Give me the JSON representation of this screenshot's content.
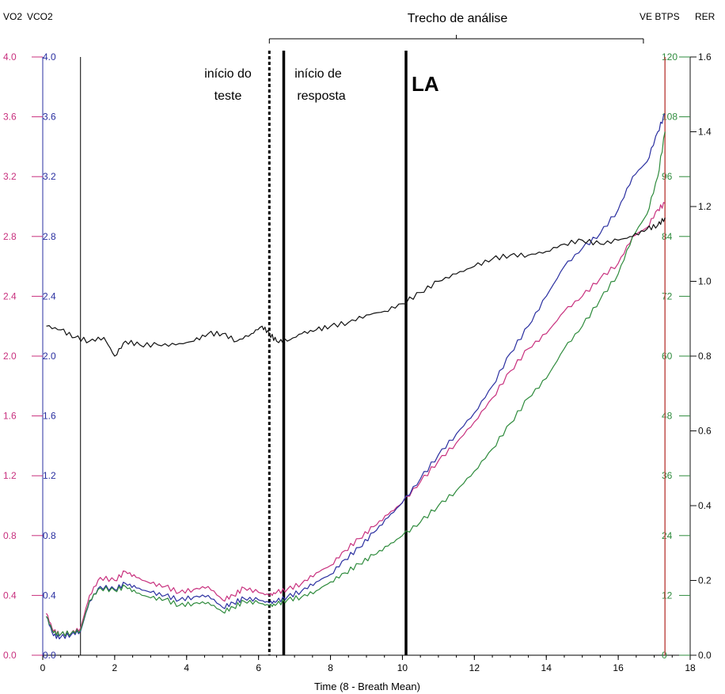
{
  "chart_data": {
    "type": "line",
    "xlabel": "Time (8 - Breath Mean)",
    "xlim": [
      0,
      18
    ],
    "x_ticks": [
      0,
      2,
      4,
      6,
      8,
      10,
      12,
      14,
      16,
      18
    ],
    "colors": {
      "VO2": "#c8307e",
      "VCO2": "#2a2fa0",
      "VE": "#2e8b3c",
      "RER": "#111111",
      "marker_red": "#c0504d"
    },
    "left_axes": [
      {
        "name": "VO2",
        "color": "#c8307e",
        "ylim": [
          0,
          4.0
        ],
        "ticks": [
          "0.0",
          "0.4",
          "0.8",
          "1.2",
          "1.6",
          "2.0",
          "2.4",
          "2.8",
          "3.2",
          "3.6",
          "4.0"
        ]
      },
      {
        "name": "VCO2",
        "color": "#2a2fa0",
        "ylim": [
          0,
          4.0
        ],
        "ticks": [
          "0.0",
          "0.4",
          "0.8",
          "1.2",
          "1.6",
          "2.0",
          "2.4",
          "2.8",
          "3.2",
          "3.6",
          "4.0"
        ]
      }
    ],
    "right_axes": [
      {
        "name": "VE BTPS",
        "color": "#2e8b3c",
        "ylim": [
          0,
          120
        ],
        "ticks": [
          "0",
          "12",
          "24",
          "36",
          "48",
          "60",
          "72",
          "84",
          "96",
          "108",
          "120"
        ]
      },
      {
        "name": "RER",
        "color": "#111111",
        "ylim": [
          0,
          1.6
        ],
        "ticks": [
          "0.0",
          "0.2",
          "0.4",
          "0.6",
          "0.8",
          "1.0",
          "1.2",
          "1.4",
          "1.6"
        ]
      }
    ],
    "header_labels": {
      "left1": "VO2",
      "left2": "VCO2",
      "right1": "VE BTPS",
      "right2": "RER"
    },
    "annotations": {
      "bracket_label": "Trecho de análise",
      "bracket_range": [
        6.3,
        16.7
      ],
      "inicio_teste": [
        "início  do",
        "teste"
      ],
      "inicio_resposta": [
        "início de",
        "resposta"
      ],
      "la": "LA"
    },
    "vertical_lines": [
      {
        "x": 1.05,
        "style": "thin"
      },
      {
        "x": 6.3,
        "style": "dotted"
      },
      {
        "x": 6.7,
        "style": "bold"
      },
      {
        "x": 10.1,
        "style": "bold"
      },
      {
        "x": 17.3,
        "style": "red"
      }
    ],
    "series": [
      {
        "name": "VO2",
        "axis": "VO2",
        "x": [
          0.1,
          0.3,
          0.5,
          0.8,
          1.05,
          1.3,
          1.6,
          2.0,
          2.3,
          2.6,
          3.0,
          3.4,
          3.8,
          4.2,
          4.6,
          5.0,
          5.3,
          5.6,
          6.0,
          6.3,
          6.5,
          6.8,
          7.2,
          7.6,
          8.0,
          8.4,
          8.8,
          9.2,
          9.6,
          10.0,
          10.5,
          11.0,
          11.5,
          12.0,
          12.5,
          13.0,
          13.5,
          14.0,
          14.5,
          15.0,
          15.5,
          16.0,
          16.4,
          16.8,
          17.1,
          17.3
        ],
        "values": [
          0.28,
          0.16,
          0.14,
          0.15,
          0.18,
          0.4,
          0.52,
          0.5,
          0.56,
          0.52,
          0.48,
          0.46,
          0.42,
          0.44,
          0.46,
          0.37,
          0.4,
          0.45,
          0.42,
          0.4,
          0.42,
          0.44,
          0.48,
          0.55,
          0.6,
          0.7,
          0.78,
          0.86,
          0.94,
          1.02,
          1.16,
          1.3,
          1.42,
          1.56,
          1.72,
          1.9,
          2.05,
          2.15,
          2.3,
          2.4,
          2.52,
          2.62,
          2.8,
          2.86,
          2.98,
          3.02
        ]
      },
      {
        "name": "VCO2",
        "axis": "VCO2",
        "x": [
          0.1,
          0.3,
          0.5,
          0.8,
          1.05,
          1.3,
          1.6,
          2.0,
          2.3,
          2.6,
          3.0,
          3.4,
          3.8,
          4.2,
          4.6,
          5.0,
          5.3,
          5.6,
          6.0,
          6.3,
          6.5,
          6.8,
          7.2,
          7.6,
          8.0,
          8.4,
          8.8,
          9.2,
          9.6,
          10.0,
          10.5,
          11.0,
          11.5,
          12.0,
          12.5,
          13.0,
          13.5,
          14.0,
          14.5,
          15.0,
          15.5,
          16.0,
          16.4,
          16.8,
          17.1,
          17.3
        ],
        "values": [
          0.26,
          0.13,
          0.12,
          0.14,
          0.16,
          0.36,
          0.46,
          0.44,
          0.48,
          0.45,
          0.42,
          0.4,
          0.37,
          0.39,
          0.4,
          0.32,
          0.35,
          0.38,
          0.37,
          0.35,
          0.36,
          0.39,
          0.43,
          0.49,
          0.54,
          0.64,
          0.72,
          0.82,
          0.92,
          1.02,
          1.18,
          1.34,
          1.48,
          1.62,
          1.8,
          2.02,
          2.2,
          2.4,
          2.6,
          2.72,
          2.82,
          2.98,
          3.2,
          3.3,
          3.5,
          3.62
        ]
      },
      {
        "name": "VE BTPS",
        "axis": "VE BTPS",
        "x": [
          0.1,
          0.3,
          0.5,
          0.8,
          1.05,
          1.3,
          1.6,
          2.0,
          2.3,
          2.6,
          3.0,
          3.4,
          3.8,
          4.2,
          4.6,
          5.0,
          5.3,
          5.6,
          6.0,
          6.3,
          6.5,
          6.8,
          7.2,
          7.6,
          8.0,
          8.4,
          8.8,
          9.2,
          9.6,
          10.0,
          10.5,
          11.0,
          11.5,
          12.0,
          12.5,
          13.0,
          13.5,
          14.0,
          14.5,
          15.0,
          15.5,
          16.0,
          16.4,
          16.8,
          17.1,
          17.3
        ],
        "values": [
          7.8,
          4.5,
          4.2,
          4.5,
          5.0,
          11.0,
          13.5,
          13.0,
          13.8,
          12.5,
          11.5,
          11.2,
          10.0,
          10.4,
          10.6,
          8.7,
          9.6,
          10.8,
          10.5,
          9.9,
          10.2,
          11.1,
          11.7,
          12.9,
          14.7,
          16.5,
          18.3,
          20.1,
          21.9,
          24.0,
          26.7,
          30.0,
          33.0,
          36.9,
          41.4,
          46.5,
          51.6,
          55.5,
          61.5,
          66.0,
          71.4,
          76.5,
          84.0,
          88.5,
          96.0,
          105.0
        ]
      },
      {
        "name": "RER",
        "axis": "RER",
        "x": [
          0.1,
          0.5,
          0.9,
          1.3,
          1.7,
          2.0,
          2.3,
          2.7,
          3.2,
          3.7,
          4.2,
          4.6,
          5.0,
          5.4,
          5.8,
          6.1,
          6.3,
          6.5,
          6.8,
          7.2,
          7.6,
          8.0,
          8.5,
          9.0,
          9.5,
          10.0,
          10.5,
          11.0,
          11.5,
          12.0,
          12.5,
          13.0,
          13.5,
          14.0,
          14.5,
          15.0,
          15.5,
          16.0,
          16.4,
          16.8,
          17.1,
          17.3
        ],
        "values": [
          0.88,
          0.87,
          0.85,
          0.84,
          0.85,
          0.8,
          0.84,
          0.83,
          0.83,
          0.83,
          0.84,
          0.86,
          0.86,
          0.84,
          0.86,
          0.88,
          0.86,
          0.84,
          0.84,
          0.86,
          0.87,
          0.88,
          0.89,
          0.91,
          0.92,
          0.94,
          0.97,
          1.0,
          1.02,
          1.04,
          1.06,
          1.07,
          1.07,
          1.08,
          1.1,
          1.11,
          1.1,
          1.11,
          1.12,
          1.14,
          1.15,
          1.17
        ]
      }
    ]
  }
}
